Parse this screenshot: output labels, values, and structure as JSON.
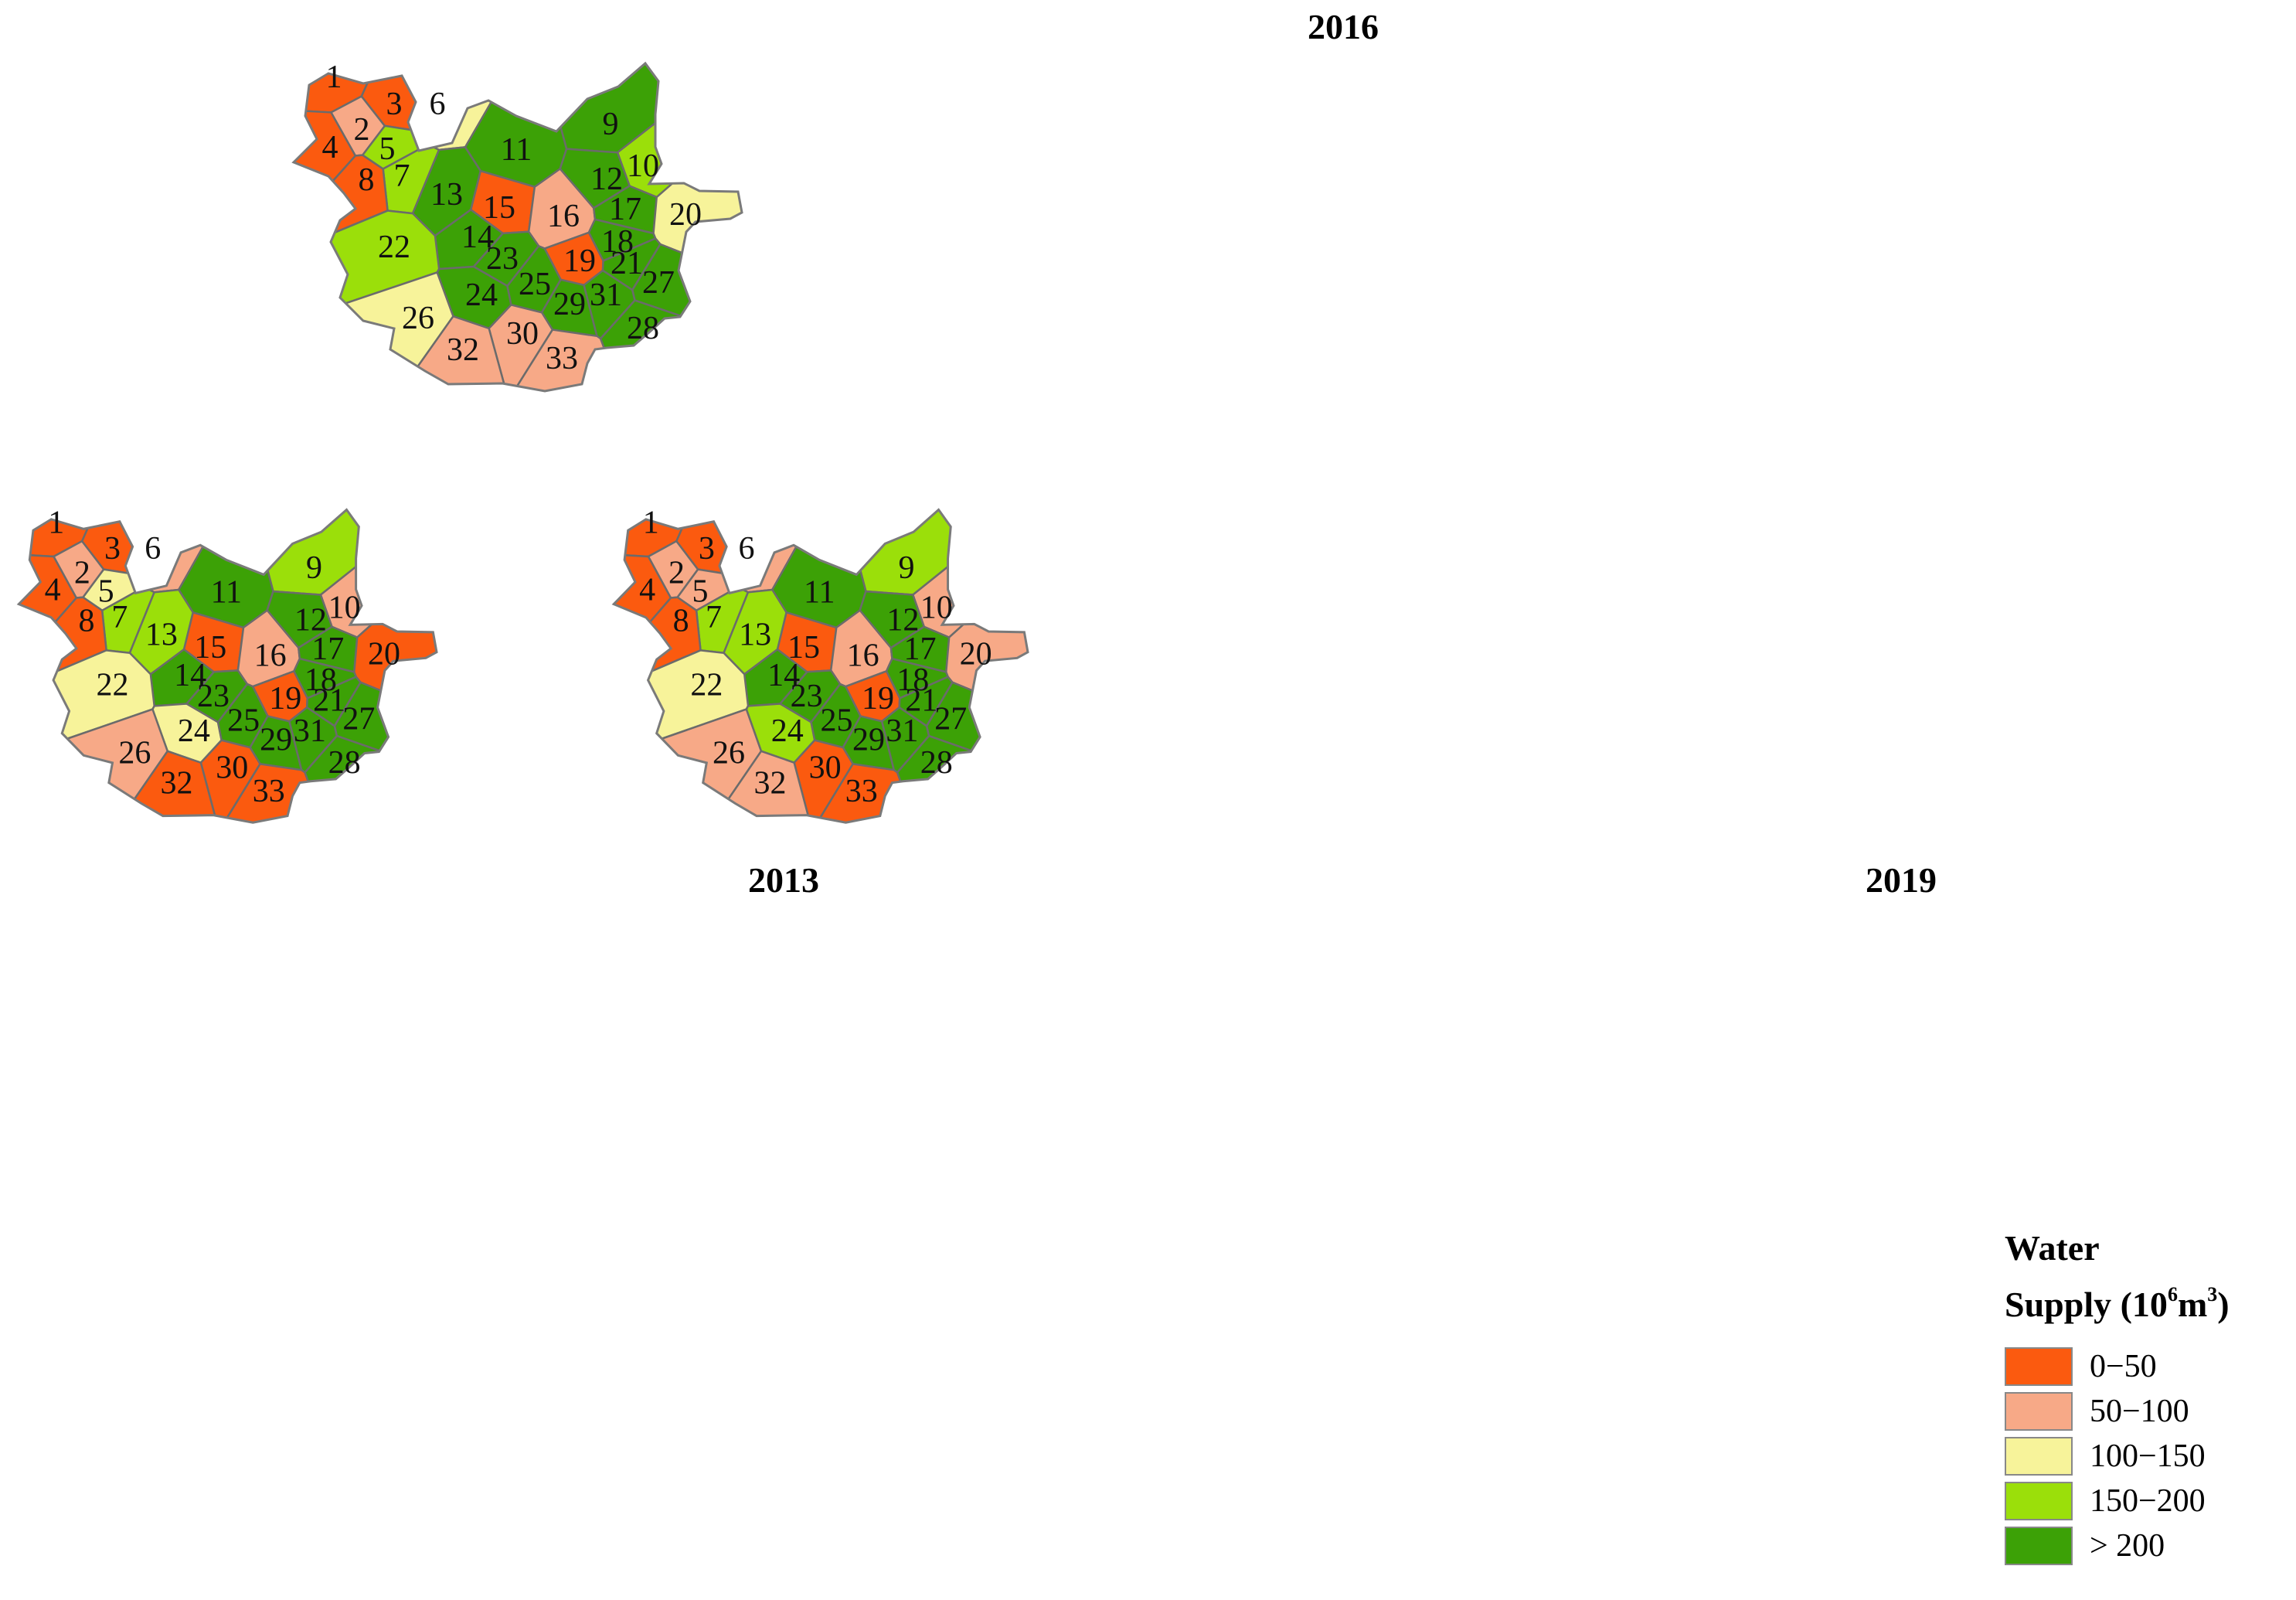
{
  "legend": {
    "title_line1": "Water",
    "title_line2_prefix": "Supply (10",
    "title_line2_sup1": "6",
    "title_line2_mid": "m",
    "title_line2_sup2": "3",
    "title_line2_suffix": ")",
    "classes": [
      {
        "label": "0−50",
        "color": "#fb5a0f"
      },
      {
        "label": "50−100",
        "color": "#f7a987"
      },
      {
        "label": "100−150",
        "color": "#f7f39a"
      },
      {
        "label": "150−200",
        "color": "#9bdf0a"
      },
      {
        "label": "> 200",
        "color": "#3ca106"
      }
    ]
  },
  "maps": [
    {
      "title": "2016",
      "classes": {
        "1": 0,
        "2": 1,
        "3": 0,
        "4": 0,
        "5": 3,
        "6": 2,
        "7": 3,
        "8": 0,
        "9": 4,
        "10": 3,
        "11": 4,
        "12": 4,
        "13": 4,
        "14": 4,
        "15": 0,
        "16": 1,
        "17": 4,
        "18": 4,
        "19": 0,
        "20": 2,
        "21": 4,
        "22": 3,
        "23": 4,
        "24": 4,
        "25": 4,
        "26": 2,
        "27": 4,
        "28": 4,
        "29": 4,
        "30": 1,
        "31": 4,
        "32": 1,
        "33": 1
      }
    },
    {
      "title": "2013",
      "classes": {
        "1": 0,
        "2": 1,
        "3": 0,
        "4": 0,
        "5": 2,
        "6": 1,
        "7": 3,
        "8": 0,
        "9": 3,
        "10": 1,
        "11": 4,
        "12": 4,
        "13": 3,
        "14": 4,
        "15": 0,
        "16": 1,
        "17": 4,
        "18": 4,
        "19": 0,
        "20": 0,
        "21": 4,
        "22": 2,
        "23": 4,
        "24": 2,
        "25": 4,
        "26": 1,
        "27": 4,
        "28": 4,
        "29": 4,
        "30": 0,
        "31": 4,
        "32": 0,
        "33": 0
      }
    },
    {
      "title": "2019",
      "classes": {
        "1": 0,
        "2": 1,
        "3": 0,
        "4": 0,
        "5": 1,
        "6": 1,
        "7": 3,
        "8": 0,
        "9": 3,
        "10": 1,
        "11": 4,
        "12": 4,
        "13": 3,
        "14": 4,
        "15": 0,
        "16": 1,
        "17": 4,
        "18": 4,
        "19": 0,
        "20": 1,
        "21": 4,
        "22": 2,
        "23": 4,
        "24": 3,
        "25": 4,
        "26": 1,
        "27": 4,
        "28": 4,
        "29": 4,
        "30": 0,
        "31": 4,
        "32": 1,
        "33": 0
      }
    }
  ]
}
